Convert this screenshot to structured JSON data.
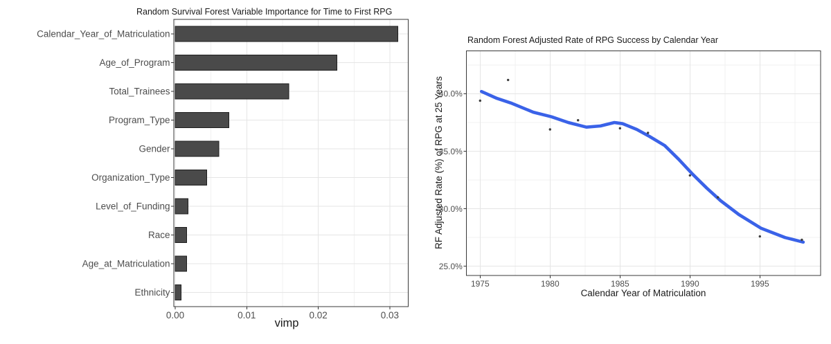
{
  "figure": {
    "background": "#ffffff"
  },
  "chart_data": [
    {
      "type": "bar",
      "orientation": "horizontal",
      "title": "Random Survival Forest Variable Importance for Time to First RPG",
      "xlabel": "vimp",
      "ylabel": "",
      "categories": [
        "Calendar_Year_of_Matriculation",
        "Age_of_Program",
        "Total_Trainees",
        "Program_Type",
        "Gender",
        "Organization_Type",
        "Level_of_Funding",
        "Race",
        "Age_at_Matriculation",
        "Ethnicity"
      ],
      "values": [
        0.0311,
        0.0226,
        0.0159,
        0.0075,
        0.0061,
        0.0044,
        0.0018,
        0.0016,
        0.0016,
        0.0008
      ],
      "x_ticks": [
        {
          "label": "0.00",
          "value": 0
        },
        {
          "label": "0.01",
          "value": 0.01
        },
        {
          "label": "0.02",
          "value": 0.02
        },
        {
          "label": "0.03",
          "value": 0.03
        }
      ],
      "x_minor": [
        0.005,
        0.015,
        0.025
      ],
      "xlim": [
        0,
        0.0326
      ],
      "grid": true,
      "legend": "none",
      "bar_fill": "#4a4a4a",
      "bar_stroke": "#1e1e1e"
    },
    {
      "type": "scatter",
      "smoother": "loess",
      "title": "Random Forest Adjusted Rate of RPG Success by Calendar Year",
      "xlabel": "Calendar Year of Matriculation",
      "ylabel": "RF Adjusted Rate (%) of RPG at 25 Years",
      "x_ticks": [
        {
          "label": "1975",
          "value": 1975
        },
        {
          "label": "1980",
          "value": 1980
        },
        {
          "label": "1985",
          "value": 1985
        },
        {
          "label": "1990",
          "value": 1990
        },
        {
          "label": "1995",
          "value": 1995
        }
      ],
      "y_ticks": [
        {
          "label": "40.0%",
          "value": 40
        },
        {
          "label": "35.0%",
          "value": 35
        },
        {
          "label": "30.0%",
          "value": 30
        },
        {
          "label": "25.0%",
          "value": 25
        }
      ],
      "x_minor": [
        1977.5,
        1982.5,
        1987.5,
        1992.5,
        1997.5
      ],
      "y_minor": [
        42.5,
        37.5,
        32.5,
        27.5
      ],
      "xlim": [
        1974.0,
        1999.35
      ],
      "ylim": [
        24.2,
        43.7
      ],
      "grid": true,
      "legend": "none",
      "points": [
        [
          1975,
          39.4
        ],
        [
          1977,
          41.2
        ],
        [
          1980,
          36.9
        ],
        [
          1982,
          37.7
        ],
        [
          1985,
          37.0
        ],
        [
          1987,
          36.6
        ],
        [
          1990,
          32.9
        ],
        [
          1992,
          31.0
        ],
        [
          1995,
          27.6
        ],
        [
          1998,
          27.3
        ]
      ],
      "smooth_line": [
        [
          1975.1,
          40.2
        ],
        [
          1976.2,
          39.6
        ],
        [
          1977.2,
          39.2
        ],
        [
          1978.8,
          38.4
        ],
        [
          1980.1,
          38.0
        ],
        [
          1981.3,
          37.5
        ],
        [
          1982.6,
          37.1
        ],
        [
          1983.6,
          37.2
        ],
        [
          1984.6,
          37.5
        ],
        [
          1985.2,
          37.4
        ],
        [
          1986.2,
          36.9
        ],
        [
          1987.1,
          36.3
        ],
        [
          1988.2,
          35.5
        ],
        [
          1989.2,
          34.3
        ],
        [
          1990.2,
          33.0
        ],
        [
          1991.2,
          31.8
        ],
        [
          1992.2,
          30.7
        ],
        [
          1993.5,
          29.5
        ],
        [
          1995.1,
          28.3
        ],
        [
          1996.8,
          27.5
        ],
        [
          1998.1,
          27.1
        ]
      ],
      "line_color": "#3A62E8",
      "point_color": "#3d3d3d"
    }
  ],
  "theme": {
    "panel_border": "#383838",
    "grid_major": "#e5e5e5",
    "grid_minor": "#f1f1f1",
    "tick_color": "#333333",
    "tick_label_color": "#4d4d4d"
  }
}
